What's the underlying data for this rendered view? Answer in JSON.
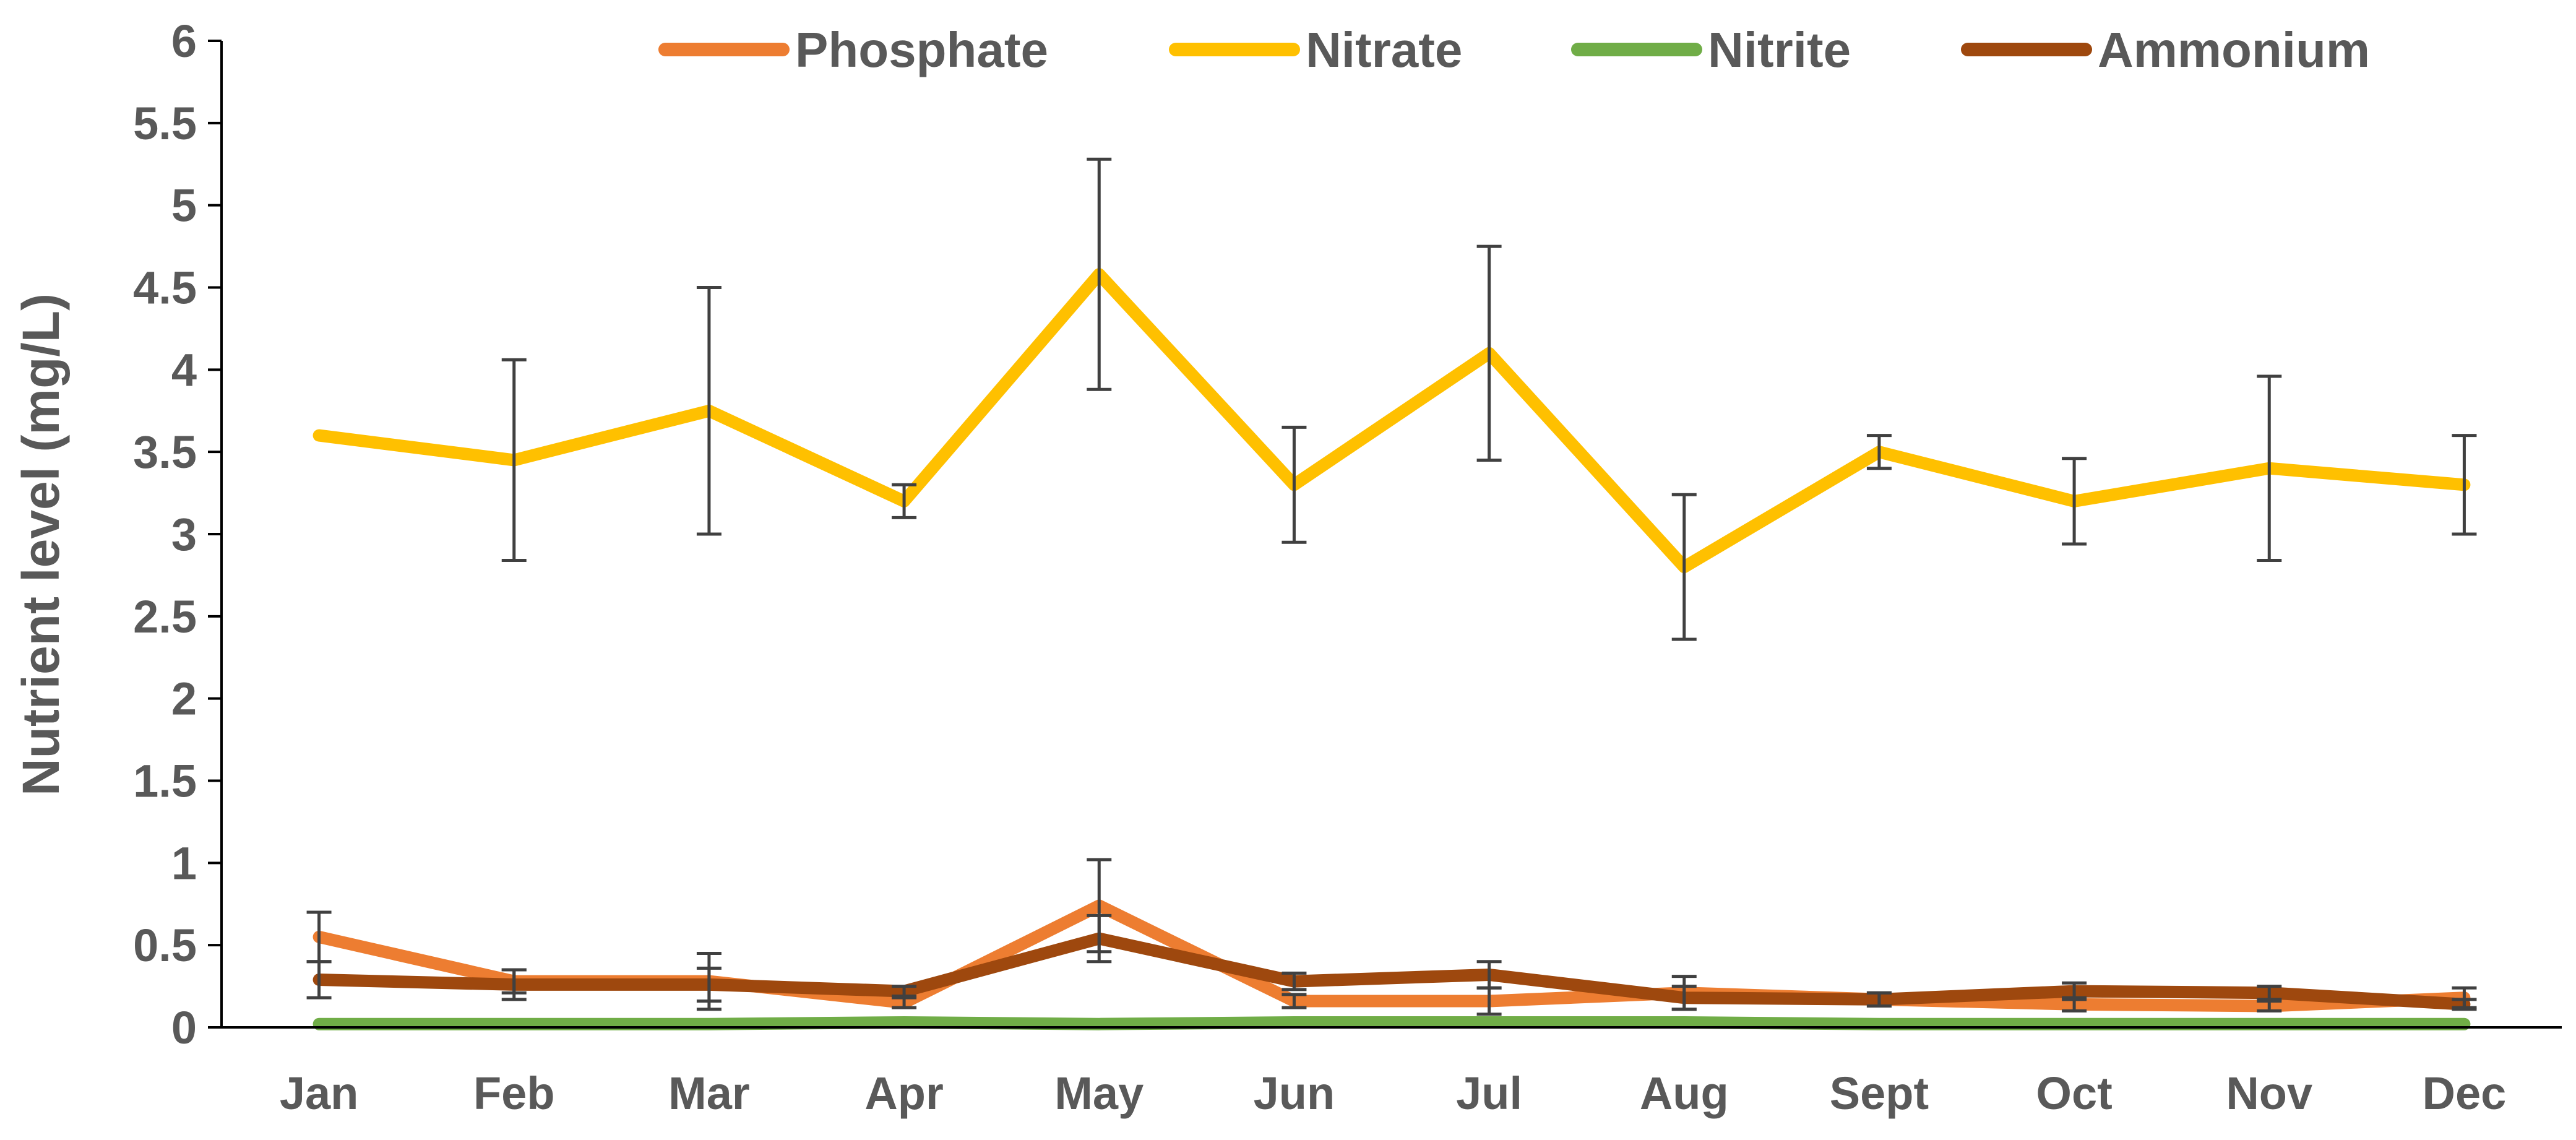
{
  "chart_data": {
    "type": "line",
    "title": "",
    "xlabel": "",
    "ylabel": "Nutrient level (mg/L)",
    "ylim": [
      0,
      6
    ],
    "yticks": [
      "0",
      "0.5",
      "1",
      "1.5",
      "2",
      "2.5",
      "3",
      "3.5",
      "4",
      "4.5",
      "5",
      "5.5",
      "6"
    ],
    "ytick_values": [
      0,
      0.5,
      1,
      1.5,
      2,
      2.5,
      3,
      3.5,
      4,
      4.5,
      5,
      5.5,
      6
    ],
    "grid": false,
    "legend_position": "top",
    "categories": [
      "Jan",
      "Feb",
      "Mar",
      "Apr",
      "May",
      "Jun",
      "Jul",
      "Aug",
      "Sept",
      "Oct",
      "Nov",
      "Dec"
    ],
    "series": [
      {
        "name": "Phosphate",
        "color": "#ED7D31",
        "values": [
          0.55,
          0.28,
          0.28,
          0.15,
          0.74,
          0.16,
          0.16,
          0.21,
          0.17,
          0.14,
          0.13,
          0.18
        ],
        "errors": [
          0.15,
          0.07,
          0.17,
          0.03,
          0.28,
          0.04,
          0.08,
          0.1,
          0.04,
          0.04,
          0.03,
          0.06
        ]
      },
      {
        "name": "Nitrate",
        "color": "#FFC000",
        "values": [
          3.6,
          3.45,
          3.75,
          3.2,
          4.58,
          3.3,
          4.1,
          2.8,
          3.5,
          3.2,
          3.4,
          3.3
        ],
        "errors": [
          0.0,
          0.61,
          0.75,
          0.1,
          0.7,
          0.35,
          0.65,
          0.44,
          0.1,
          0.26,
          0.56,
          0.3
        ]
      },
      {
        "name": "Nitrite",
        "color": "#70AD47",
        "values": [
          0.02,
          0.02,
          0.02,
          0.03,
          0.02,
          0.03,
          0.03,
          0.03,
          0.02,
          0.02,
          0.02,
          0.02
        ],
        "errors": []
      },
      {
        "name": "Ammonium",
        "color": "#9E480E",
        "values": [
          0.29,
          0.26,
          0.26,
          0.22,
          0.54,
          0.28,
          0.32,
          0.18,
          0.17,
          0.22,
          0.21,
          0.14
        ],
        "errors": [
          0.11,
          0.09,
          0.1,
          0.03,
          0.14,
          0.05,
          0.08,
          0.07,
          0.04,
          0.05,
          0.04,
          0.03
        ]
      }
    ],
    "axis_color": "#000000",
    "text_color": "#595959",
    "errorbar_color": "#404040"
  }
}
